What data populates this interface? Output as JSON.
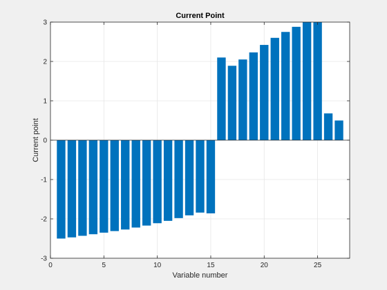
{
  "chart_data": {
    "type": "bar",
    "title": "Current Point",
    "xlabel": "Variable number",
    "ylabel": "Current point",
    "xlim": [
      0,
      28
    ],
    "ylim": [
      -3,
      3
    ],
    "xticks": [
      0,
      5,
      10,
      15,
      20,
      25
    ],
    "yticks": [
      -3,
      -2,
      -1,
      0,
      1,
      2,
      3
    ],
    "grid": true,
    "bar_color": "#0072bd",
    "x": [
      1,
      2,
      3,
      4,
      5,
      6,
      7,
      8,
      9,
      10,
      11,
      12,
      13,
      14,
      15,
      16,
      17,
      18,
      19,
      20,
      21,
      22,
      23,
      24,
      25,
      26,
      27
    ],
    "values": [
      -2.5,
      -2.47,
      -2.43,
      -2.39,
      -2.35,
      -2.31,
      -2.27,
      -2.22,
      -2.17,
      -2.11,
      -2.05,
      -1.98,
      -1.91,
      -1.84,
      -1.86,
      2.1,
      1.89,
      2.05,
      2.23,
      2.42,
      2.6,
      2.75,
      2.88,
      3.0,
      3.0,
      0.68,
      0.5
    ]
  }
}
